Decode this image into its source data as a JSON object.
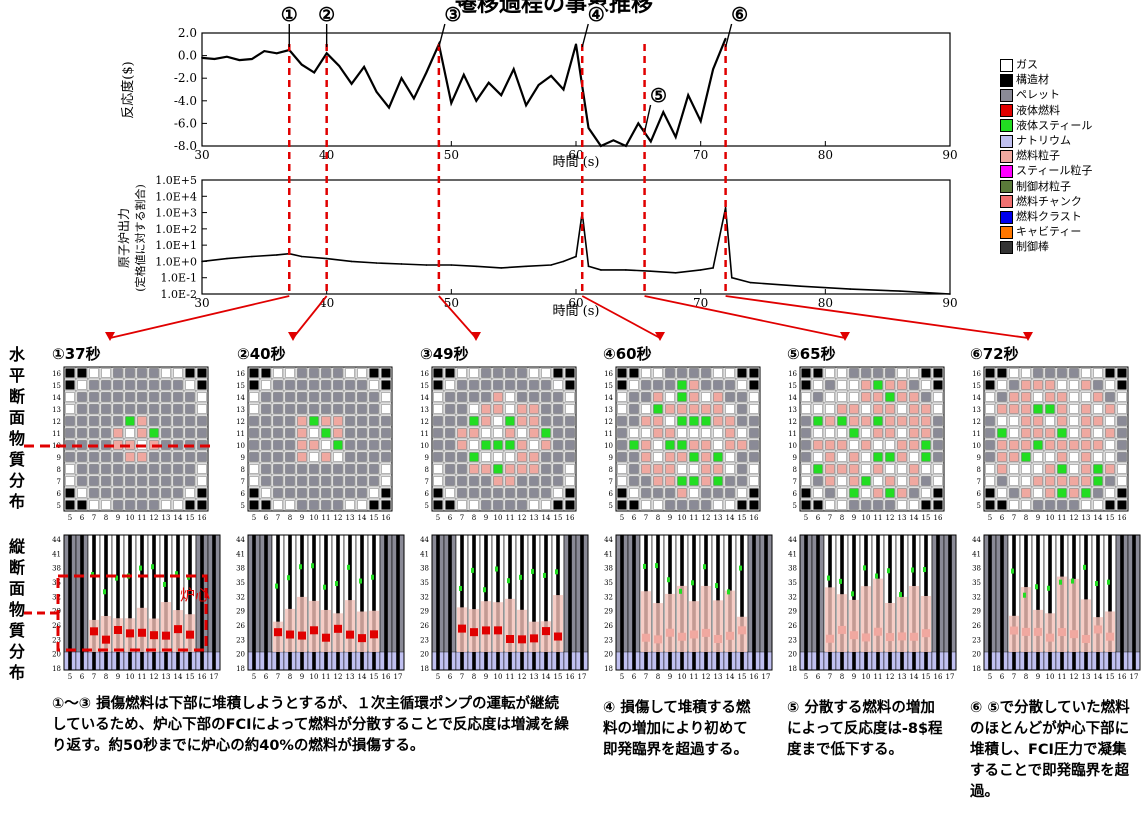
{
  "header": {
    "title": "遷移過程の事象推移"
  },
  "chart_data": [
    {
      "type": "line",
      "ylabel": "反応度($)",
      "xlabel": "時間 (s)",
      "xlim": [
        30,
        90
      ],
      "ylim": [
        -8,
        2
      ],
      "xticks": [
        "30",
        "40",
        "50",
        "60",
        "70",
        "80",
        "90"
      ],
      "yticks": [
        "2.0",
        "0.0",
        "-2.0",
        "-4.0",
        "-6.0",
        "-8.0"
      ],
      "x": [
        30,
        31,
        32,
        33,
        34,
        35,
        36,
        37,
        38,
        39,
        40,
        41,
        42,
        43,
        44,
        45,
        46,
        47,
        48,
        49,
        50,
        51,
        52,
        53,
        54,
        55,
        56,
        57,
        58,
        59,
        60,
        61,
        62,
        63,
        64,
        65,
        66,
        67,
        68,
        69,
        70,
        71,
        72
      ],
      "values": [
        -0.2,
        -0.3,
        -0.1,
        -0.4,
        -0.3,
        0.4,
        0.2,
        0.5,
        -0.8,
        -1.5,
        0.2,
        -0.9,
        -2.5,
        -1.0,
        -3.2,
        -4.6,
        -2.0,
        -3.8,
        -1.5,
        1.0,
        -4.2,
        -1.7,
        -4.0,
        -2.4,
        -3.5,
        -1.2,
        -4.4,
        -2.6,
        -1.8,
        -3.0,
        1.0,
        -6.4,
        -8.0,
        -7.5,
        -8.0,
        -6.0,
        -7.6,
        -5.0,
        -7.2,
        -3.5,
        -5.8,
        -1.2,
        1.5
      ],
      "grid": false
    },
    {
      "type": "line",
      "ylabel": "原子炉出力 (定格値に対する割合)",
      "xlabel": "時間 (s)",
      "xlim": [
        30,
        90
      ],
      "ylim": [
        -2,
        5
      ],
      "scale": "log",
      "xticks": [
        "30",
        "40",
        "50",
        "60",
        "70",
        "80",
        "90"
      ],
      "yticks": [
        "1.0E+5",
        "1.0E+4",
        "1.0E+3",
        "1.0E+2",
        "1.0E+1",
        "1.0E+0",
        "1.0E-1",
        "1.0E-2"
      ],
      "x": [
        30,
        32,
        34,
        36,
        37,
        38,
        40,
        42,
        44,
        46,
        48,
        50,
        52,
        54,
        56,
        58,
        59,
        60,
        60.5,
        61,
        62,
        64,
        66,
        68,
        70,
        71,
        72,
        72.5,
        74,
        78,
        82,
        86,
        90
      ],
      "values": [
        1,
        1.5,
        2,
        2.5,
        3,
        2,
        1.5,
        1,
        0.8,
        0.7,
        0.6,
        0.6,
        0.5,
        0.4,
        0.5,
        0.6,
        1,
        2,
        1000,
        0.5,
        0.3,
        0.3,
        0.25,
        0.2,
        0.3,
        0.4,
        2000,
        0.1,
        0.05,
        0.03,
        0.02,
        0.015,
        0.01
      ],
      "grid": false
    }
  ],
  "markers": [
    {
      "label": "①",
      "time": 37
    },
    {
      "label": "②",
      "time": 40
    },
    {
      "label": "③",
      "time": 49
    },
    {
      "label": "④",
      "time": 60.5
    },
    {
      "label": "⑤",
      "time": 65.5
    },
    {
      "label": "⑥",
      "time": 72
    }
  ],
  "legend": [
    {
      "label": "ガス",
      "color": "#ffffff"
    },
    {
      "label": "構造材",
      "color": "#000000"
    },
    {
      "label": "ペレット",
      "color": "#8a8a96"
    },
    {
      "label": "液体燃料",
      "color": "#e00000"
    },
    {
      "label": "液体スティール",
      "color": "#22dd22"
    },
    {
      "label": "ナトリウム",
      "color": "#c0c0f0"
    },
    {
      "label": "燃料粒子",
      "color": "#f0a8a0"
    },
    {
      "label": "スティール粒子",
      "color": "#ff00ff"
    },
    {
      "label": "制御材粒子",
      "color": "#5a7a3a"
    },
    {
      "label": "燃料チャンク",
      "color": "#f07070"
    },
    {
      "label": "燃料クラスト",
      "color": "#0000ee"
    },
    {
      "label": "キャビティー",
      "color": "#ff7700"
    },
    {
      "label": "制御棒",
      "color": "#333333"
    }
  ],
  "panels": [
    {
      "title": "①37秒"
    },
    {
      "title": "②40秒"
    },
    {
      "title": "③49秒"
    },
    {
      "title": "④60秒"
    },
    {
      "title": "⑤65秒"
    },
    {
      "title": "⑥72秒"
    }
  ],
  "grid_axes": {
    "h_x_ticks": [
      "5",
      "6",
      "7",
      "8",
      "9",
      "10",
      "11",
      "12",
      "13",
      "14",
      "15",
      "16",
      "17"
    ],
    "h_y_ticks": [
      "16",
      "15",
      "14",
      "13",
      "12",
      "11",
      "10",
      "9",
      "8",
      "7",
      "6",
      "5"
    ],
    "v_x_ticks": [
      "5",
      "6",
      "7",
      "8",
      "9",
      "10",
      "11",
      "12",
      "13",
      "14",
      "15",
      "16",
      "17"
    ],
    "v_y_ticks": [
      "44",
      "41",
      "38",
      "35",
      "32",
      "29",
      "26",
      "23",
      "20",
      "18"
    ]
  },
  "side_labels": {
    "horizontal": [
      "水",
      "平",
      "断",
      "面",
      "物",
      "質",
      "分",
      "布"
    ],
    "vertical": [
      "縦",
      "断",
      "面",
      "物",
      "質",
      "分",
      "布"
    ]
  },
  "core_label": "炉心",
  "captions": [
    "①～③ 損傷燃料は下部に堆積しようとするが、１次主循環ポンプの運転が継続しているため、炉心下部のFCIによって燃料が分散することで反応度は増減を繰り返す。約50秒までに炉心の約40%の燃料が損傷する。",
    "④ 損傷して堆積する燃料の増加により初めて即発臨界を超過する。",
    "⑤ 分散する燃料の増加によって反応度は-8$程度まで低下する。",
    "⑥ ⑤で分散していた燃料のほとんどが炉心下部に堆積し、FCI圧力で凝集することで即発臨界を超過。"
  ]
}
